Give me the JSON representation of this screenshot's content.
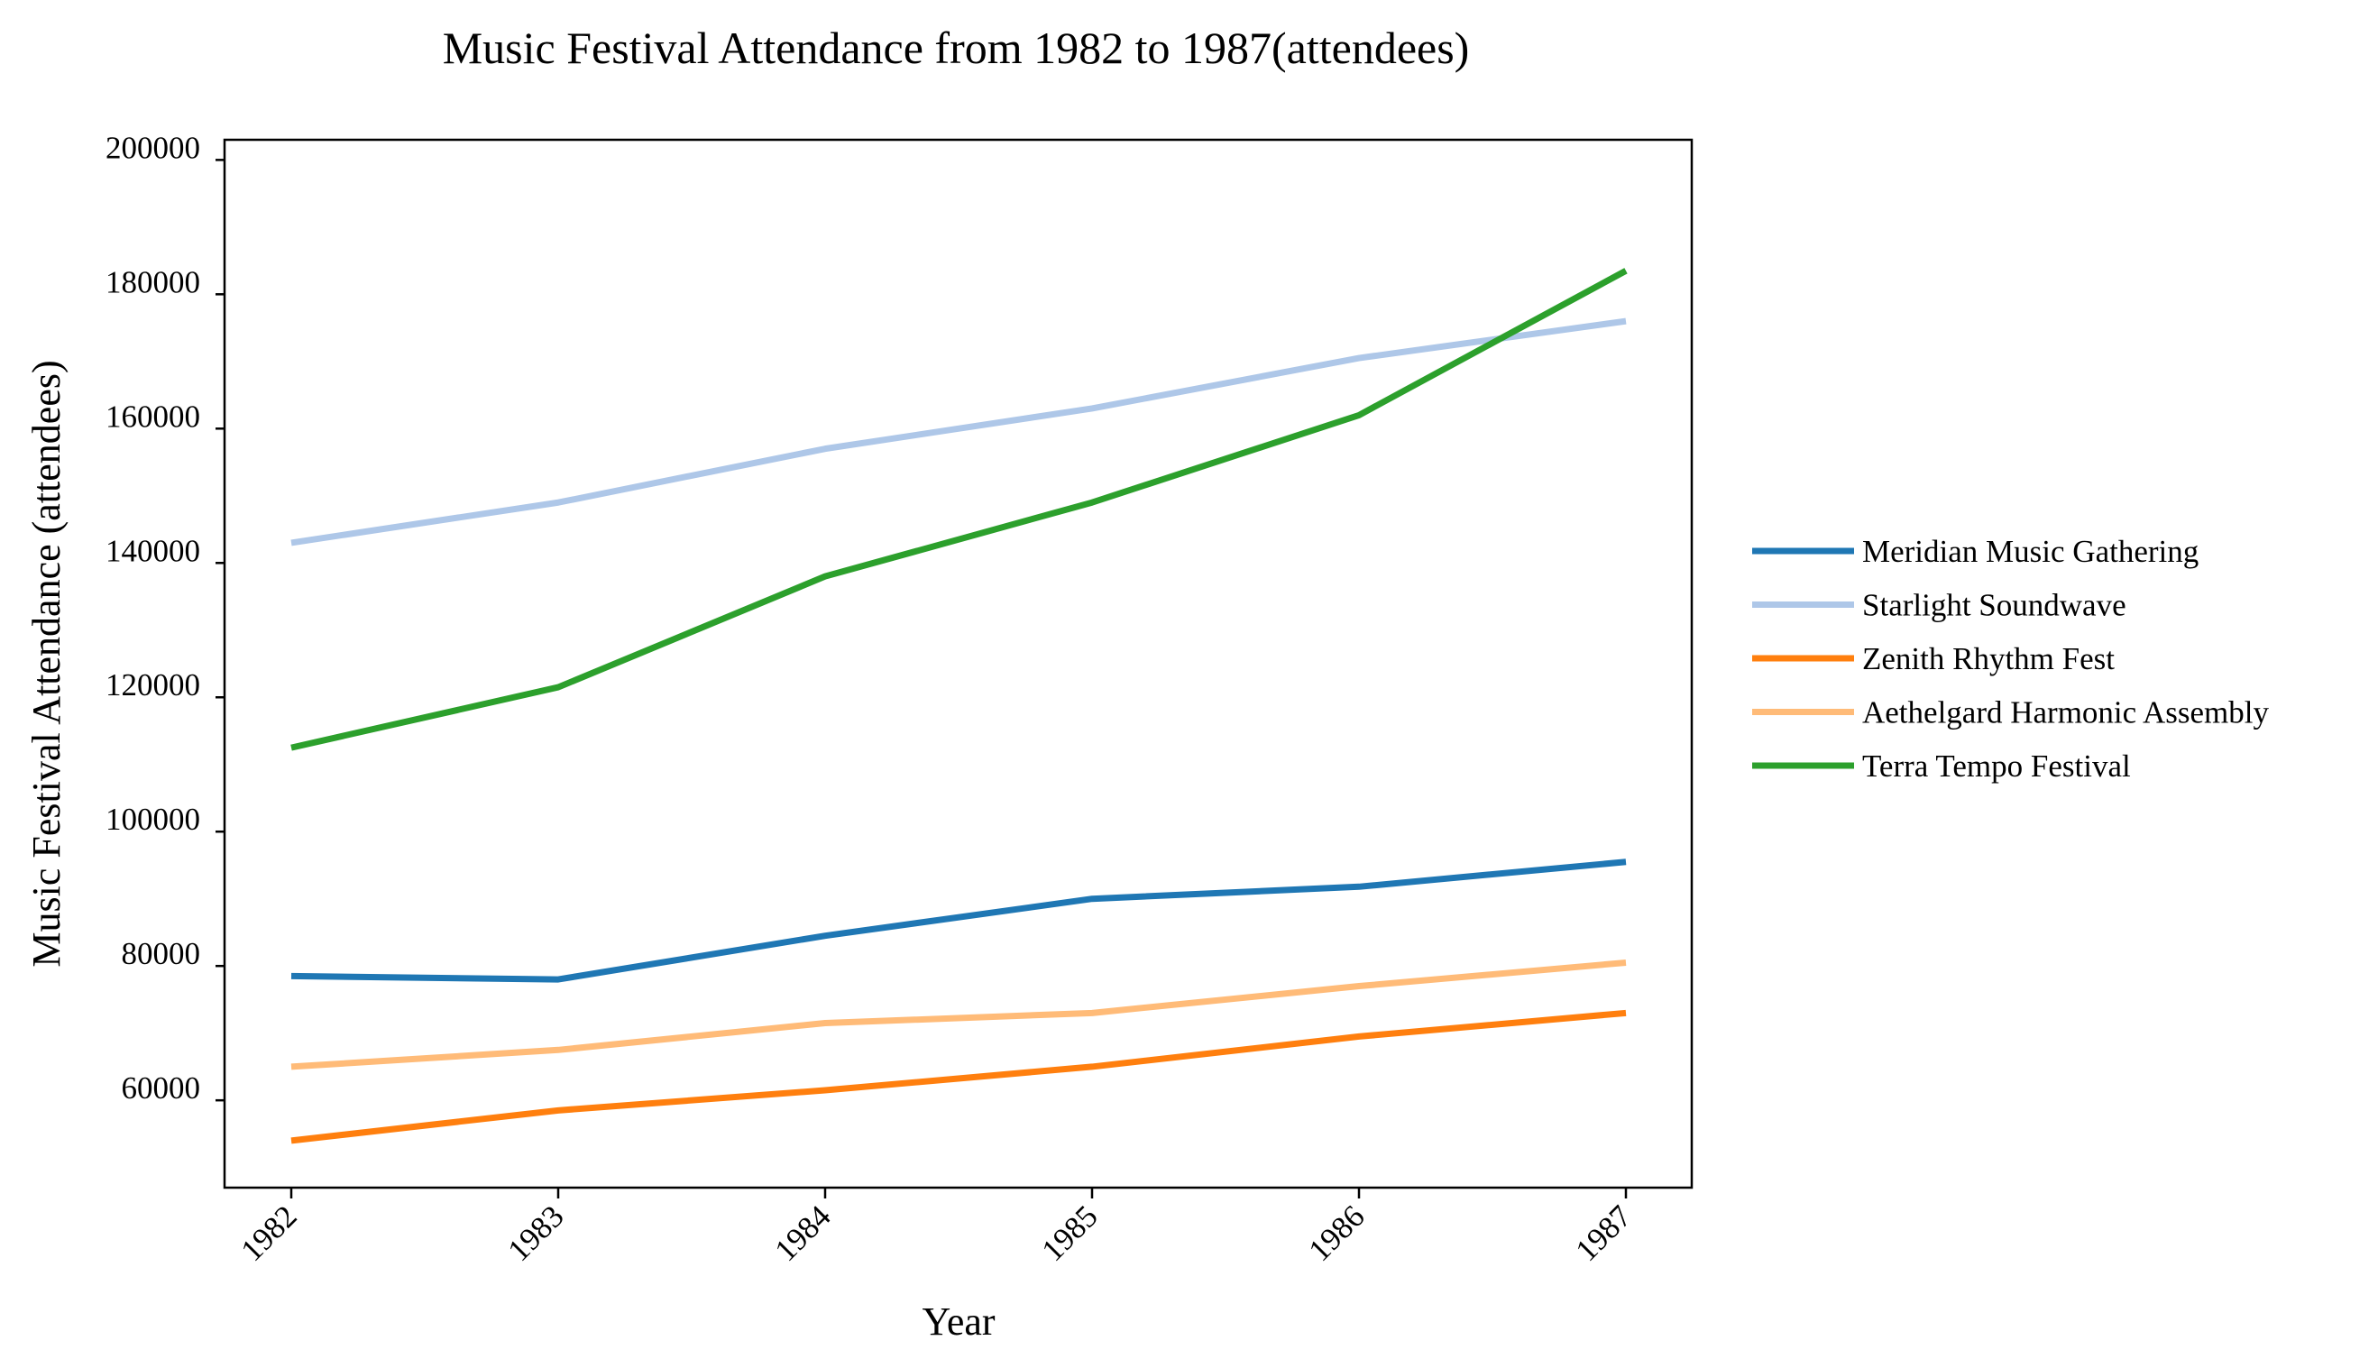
{
  "chart_data": {
    "type": "line",
    "title": "Music Festival Attendance from 1982 to 1987(attendees)",
    "xlabel": "Year",
    "ylabel": "Music Festival Attendance (attendees)",
    "categories": [
      "1982",
      "1983",
      "1984",
      "1985",
      "1986",
      "1987"
    ],
    "yticks": [
      "60000",
      "80000",
      "100000",
      "120000",
      "140000",
      "160000",
      "180000",
      "200000"
    ],
    "ylim": [
      47000,
      203000
    ],
    "grid": false,
    "legend_position": "right",
    "series": [
      {
        "name": "Meridian Music Gathering",
        "color": "#1f77b4",
        "values": [
          78500,
          78000,
          84500,
          90000,
          91800,
          95500
        ]
      },
      {
        "name": "Starlight Soundwave",
        "color": "#aec7e8",
        "values": [
          143000,
          149000,
          157000,
          163000,
          170500,
          176000
        ]
      },
      {
        "name": "Zenith Rhythm Fest",
        "color": "#ff7f0e",
        "values": [
          54000,
          58500,
          61500,
          65000,
          69500,
          73000
        ]
      },
      {
        "name": "Aethelgard Harmonic Assembly",
        "color": "#ffbb78",
        "values": [
          65000,
          67500,
          71500,
          73000,
          77000,
          80500
        ]
      },
      {
        "name": "Terra Tempo Festival",
        "color": "#2ca02c",
        "values": [
          112500,
          121500,
          138000,
          149000,
          162000,
          183500
        ]
      }
    ]
  }
}
